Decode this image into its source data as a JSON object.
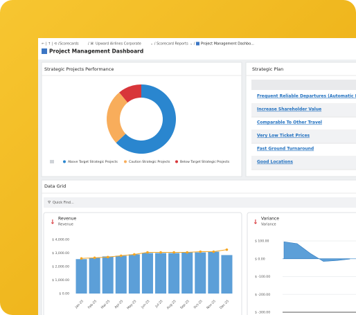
{
  "breadcrumb": [
    "Scorecards",
    "Upward Airlines Corporate",
    "Scorecard Reports",
    "Project Management Dashbo..."
  ],
  "title": "Project Management Dashboard",
  "strategic_plan": {
    "title": "Strategic Plan",
    "items": [
      "Frequent Reliable Departures (Automatic Eval)",
      "Increase Shareholder Value",
      "Comparable To Other Travel",
      "Very Low Ticket Prices",
      "Fast Ground Turnaround",
      "Good Locations"
    ]
  },
  "data_grid": {
    "title": "Data Grid",
    "search_placeholder": "Quick Find..."
  },
  "chart_data": [
    {
      "type": "pie",
      "title": "Strategic Projects Performance",
      "categories": [
        "Above Target Strategic Projects",
        "Caution Strategic Projects",
        "Below Target Strategic Projects"
      ],
      "values": [
        63,
        26,
        11
      ],
      "colors": [
        "#2a86cf",
        "#f8ad5b",
        "#d8363a"
      ],
      "legend": "bottom"
    },
    {
      "type": "bar",
      "title": "Revenue",
      "subtitle": "Revenue",
      "categories": [
        "Jan-25",
        "Feb-25",
        "Mar-25",
        "Apr-25",
        "May-25",
        "Jun-25",
        "Jul-25",
        "Aug-25",
        "Sep-25",
        "Oct-25",
        "Nov-25",
        "Dec-25"
      ],
      "series": [
        {
          "type": "bar",
          "color": "#5c9fd8",
          "values": [
            2550,
            2650,
            2750,
            2800,
            2900,
            3000,
            3000,
            3000,
            3050,
            3050,
            3100,
            2850
          ]
        },
        {
          "type": "line",
          "color": "#f5a623",
          "values": [
            2600,
            2650,
            2700,
            2800,
            2900,
            3050,
            3050,
            3050,
            3050,
            3100,
            3100,
            3250
          ]
        }
      ],
      "ylim": [
        0,
        4000
      ],
      "yticks": [
        {
          "value": 0,
          "label": "$ 0.00"
        },
        {
          "value": 1000,
          "label": "$ 1,000.00"
        },
        {
          "value": 2000,
          "label": "$ 2,000.00"
        },
        {
          "value": 3000,
          "label": "$ 3,000.00"
        },
        {
          "value": 4000,
          "label": "$ 4,000.00"
        }
      ],
      "grid": false
    },
    {
      "type": "area",
      "title": "Variance",
      "subtitle": "Variance",
      "values": [
        95,
        85,
        30,
        -15,
        -10,
        -2
      ],
      "color": "#5c9fd8",
      "ylim": [
        -300,
        100
      ],
      "yticks": [
        {
          "value": 100,
          "label": "$ 100.00"
        },
        {
          "value": 0,
          "label": "$ 0.00"
        },
        {
          "value": -100,
          "label": "$ -100.00"
        },
        {
          "value": -200,
          "label": "$ -200.00"
        },
        {
          "value": -300,
          "label": "$ -300.00"
        }
      ],
      "grid": true
    }
  ]
}
